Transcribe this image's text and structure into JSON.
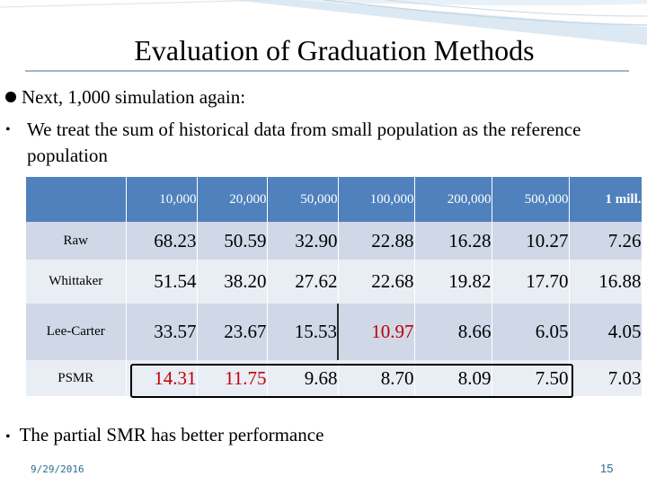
{
  "slide": {
    "title": "Evaluation of Graduation Methods",
    "bullet1": "Next, 1,000 simulation again:",
    "bullet2": "We treat the sum of historical data from small population as the reference population",
    "bullet3": "The partial SMR has better performance",
    "date": "9/29/2016",
    "page_number": "15"
  },
  "table": {
    "columns": [
      "",
      "10,000",
      "20,000",
      "50,000",
      "100,000",
      "200,000",
      "500,000",
      "1 mill."
    ],
    "rows": [
      {
        "label": "Raw",
        "values": [
          "68.23",
          "50.59",
          "32.90",
          "22.88",
          "16.28",
          "10.27",
          "7.26"
        ]
      },
      {
        "label": "Whittaker",
        "values": [
          "51.54",
          "38.20",
          "27.62",
          "22.68",
          "19.82",
          "17.70",
          "16.88"
        ]
      },
      {
        "label": "Lee-Carter",
        "values": [
          "33.57",
          "23.67",
          "15.53",
          "10.97",
          "8.66",
          "6.05",
          "4.05"
        ]
      },
      {
        "label": "PSMR",
        "values": [
          "14.31",
          "11.75",
          "9.68",
          "8.70",
          "8.09",
          "7.50",
          "7.03"
        ]
      }
    ]
  },
  "colors": {
    "header_bg": "#4f81bd",
    "row_dark": "#d0d8e8",
    "row_light": "#e9edf4",
    "highlight_text": "#c00000"
  }
}
